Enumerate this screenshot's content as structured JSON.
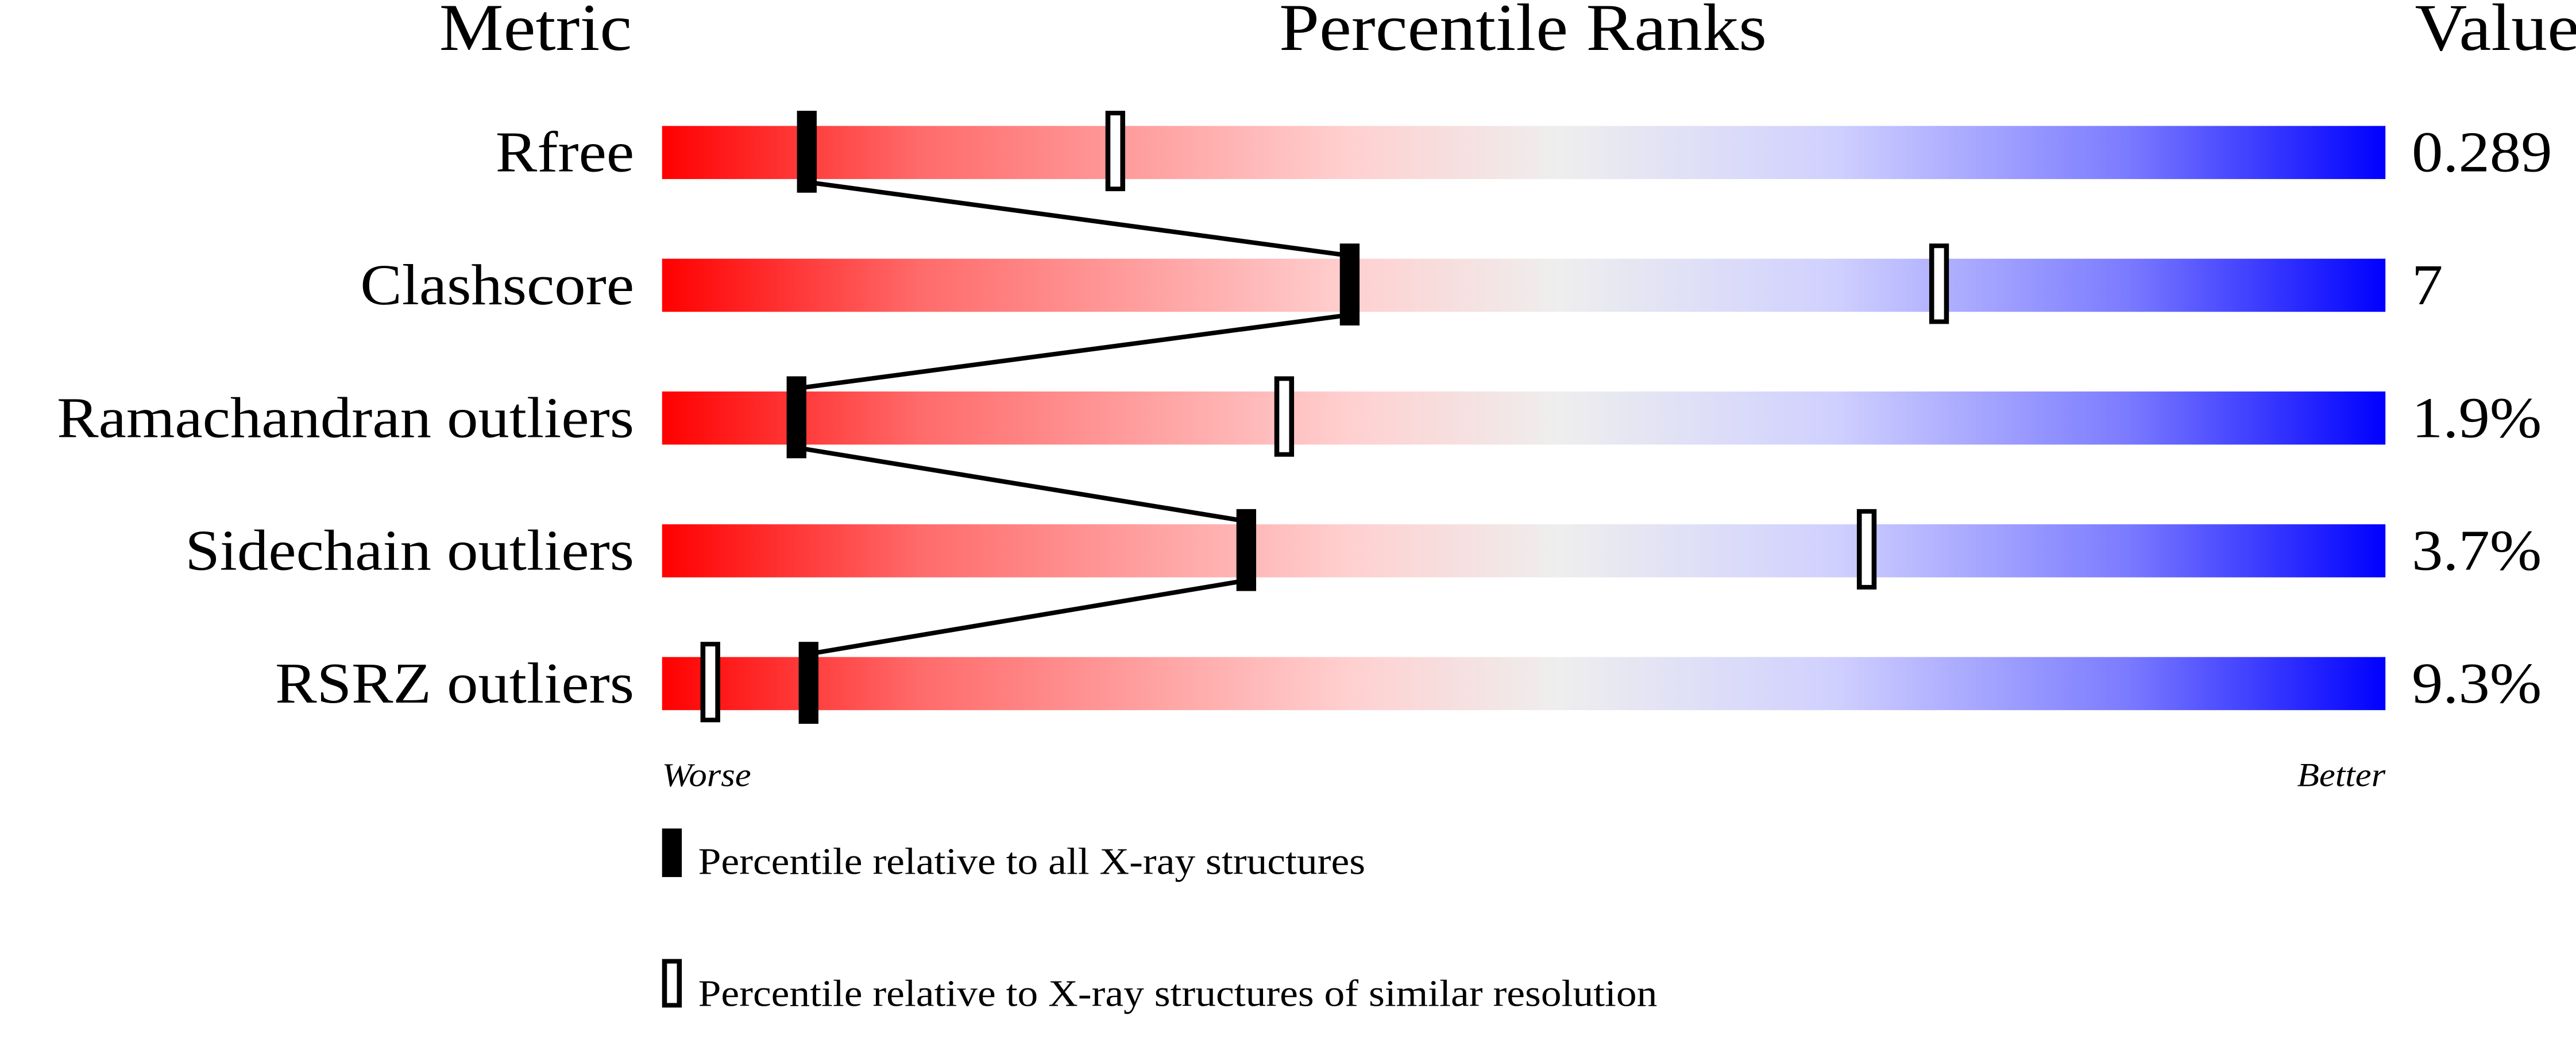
{
  "chart_data": {
    "type": "percentile-slider",
    "headers": {
      "metric": "Metric",
      "ranks": "Percentile Ranks",
      "value": "Value"
    },
    "xlim": [
      0,
      100
    ],
    "scale_labels": {
      "left": "Worse",
      "right": "Better"
    },
    "gradient_colors": [
      "#ff0000",
      "#ff6b6b",
      "#ffd0d0",
      "#eeeeee",
      "#d0d0ff",
      "#7b7bff",
      "#0000ff"
    ],
    "rows": [
      {
        "metric": "Rfree",
        "value": "0.289",
        "percentile_all": 8.4,
        "percentile_similar": 26.3
      },
      {
        "metric": "Clashscore",
        "value": "7",
        "percentile_all": 39.9,
        "percentile_similar": 74.1
      },
      {
        "metric": "Ramachandran outliers",
        "value": "1.9%",
        "percentile_all": 7.8,
        "percentile_similar": 36.1
      },
      {
        "metric": "Sidechain outliers",
        "value": "3.7%",
        "percentile_all": 33.9,
        "percentile_similar": 69.9
      },
      {
        "metric": "RSRZ outliers",
        "value": "9.3%",
        "percentile_all": 8.5,
        "percentile_similar": 2.8
      }
    ],
    "legend": {
      "all": "Percentile relative to all X-ray structures",
      "similar": "Percentile relative to X-ray structures of similar resolution"
    }
  }
}
